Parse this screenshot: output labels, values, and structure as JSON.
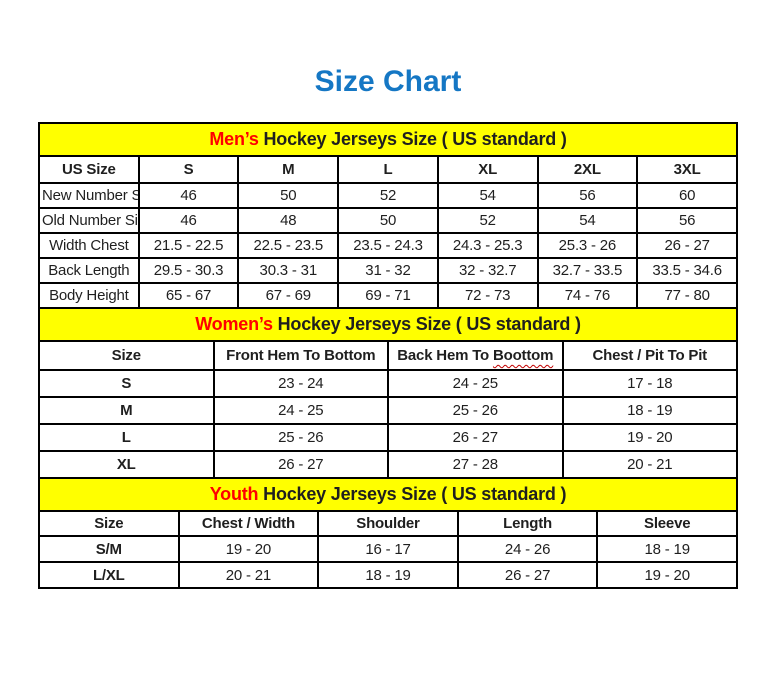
{
  "page": {
    "title": "Size Chart"
  },
  "colors": {
    "title_blue": "#1577C4",
    "band_yellow": "#FFFF00",
    "accent_red": "#FF0000",
    "border_black": "#000000",
    "text_black": "#1F1F1F",
    "squiggle_red": "#C00000"
  },
  "tables": [
    {
      "name": "mens",
      "band": {
        "highlight": "Men’s",
        "rest": " Hockey Jerseys Size ( US standard )"
      },
      "columns": [
        "US Size",
        "S",
        "M",
        "L",
        "XL",
        "2XL",
        "3XL"
      ],
      "rows": [
        [
          "New Number Size",
          "46",
          "50",
          "52",
          "54",
          "56",
          "60"
        ],
        [
          "Old Number Size",
          "46",
          "48",
          "50",
          "52",
          "54",
          "56"
        ],
        [
          "Width Chest",
          "21.5 - 22.5",
          "22.5 - 23.5",
          "23.5 - 24.3",
          "24.3 - 25.3",
          "25.3 - 26",
          "26 - 27"
        ],
        [
          "Back Length",
          "29.5 - 30.3",
          "30.3 - 31",
          "31 - 32",
          "32 - 32.7",
          "32.7 - 33.5",
          "33.5 - 34.6"
        ],
        [
          "Body Height",
          "65 - 67",
          "67 - 69",
          "69 - 71",
          "72 - 73",
          "74 - 76",
          "77 - 80"
        ]
      ]
    },
    {
      "name": "womens",
      "band": {
        "highlight": "Women’s",
        "rest": " Hockey Jerseys Size ( US standard )"
      },
      "columns": [
        "Size",
        "Front Hem To Bottom",
        "Back Hem To Boottom",
        "Chest / Pit To Pit"
      ],
      "misspell": {
        "col": 2,
        "word": "Boottom"
      },
      "rows": [
        [
          "S",
          "23 - 24",
          "24 - 25",
          "17 - 18"
        ],
        [
          "M",
          "24 - 25",
          "25 - 26",
          "18 - 19"
        ],
        [
          "L",
          "25 - 26",
          "26 - 27",
          "19 - 20"
        ],
        [
          "XL",
          "26 - 27",
          "27 - 28",
          "20 - 21"
        ]
      ]
    },
    {
      "name": "youth",
      "band": {
        "highlight": "Youth",
        "rest": " Hockey Jerseys Size ( US standard )"
      },
      "columns": [
        "Size",
        "Chest / Width",
        "Shoulder",
        "Length",
        "Sleeve"
      ],
      "rows": [
        [
          "S/M",
          "19 - 20",
          "16 - 17",
          "24 - 26",
          "18 - 19"
        ],
        [
          "L/XL",
          "20 - 21",
          "18 - 19",
          "26 - 27",
          "19 - 20"
        ]
      ]
    }
  ]
}
